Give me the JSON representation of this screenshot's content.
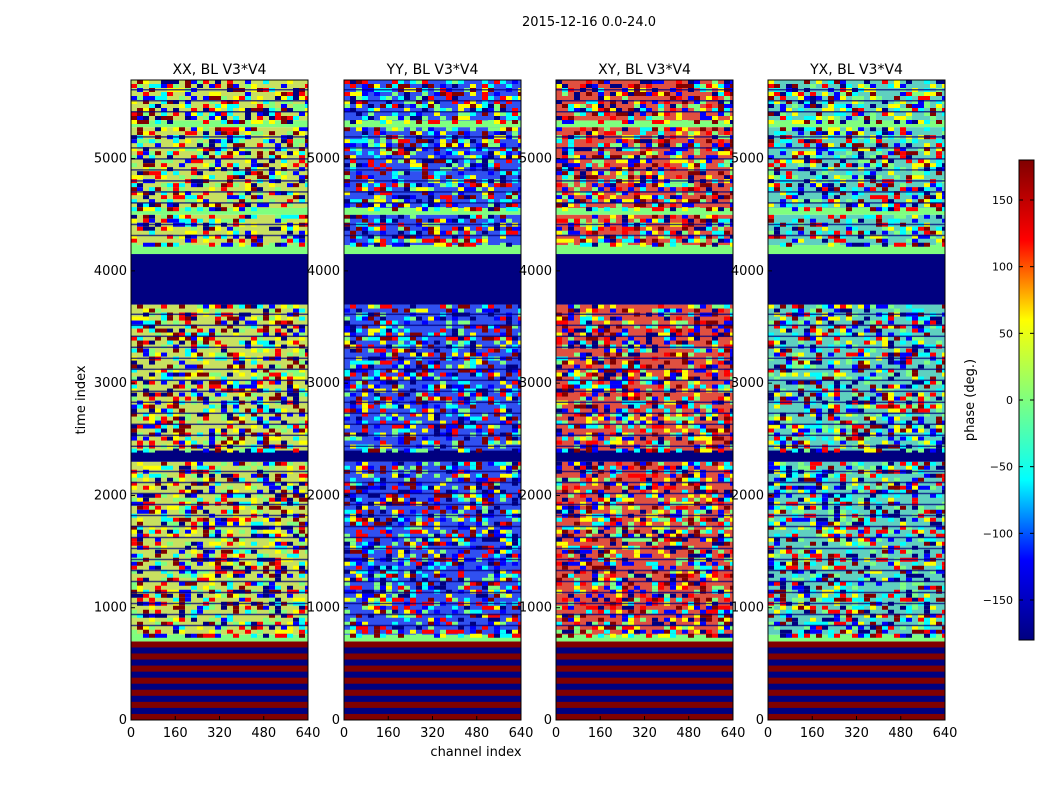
{
  "figure": {
    "suptitle": "2015-12-16 0.0-24.0",
    "xlabel": "channel index",
    "ylabel": "time index"
  },
  "colormap": {
    "name": "jet",
    "stops": [
      "#000080",
      "#0000ff",
      "#00ffff",
      "#7fff7f",
      "#ffff00",
      "#ff0000",
      "#800000"
    ]
  },
  "chart_data": [
    {
      "type": "heatmap",
      "title": "XX, BL V3*V4",
      "x": "channel index",
      "xlim": [
        0,
        640
      ],
      "xticks": [
        0,
        160,
        320,
        480,
        640
      ],
      "ylim": [
        0,
        5700
      ],
      "yticks": [
        0,
        1000,
        2000,
        3000,
        4000,
        5000
      ],
      "ylabel": "time index",
      "noise_color": "#c8e060",
      "bands": [
        {
          "y0": 0,
          "y1": 700,
          "kind": "stripes",
          "colors": [
            "#800000",
            "#000080"
          ]
        },
        {
          "y0": 700,
          "y1": 760,
          "kind": "solid",
          "color": "#7fff7f"
        },
        {
          "y0": 760,
          "y1": 2300,
          "kind": "noise"
        },
        {
          "y0": 2300,
          "y1": 2400,
          "kind": "solid",
          "color": "#000080"
        },
        {
          "y0": 2400,
          "y1": 3700,
          "kind": "noise"
        },
        {
          "y0": 3700,
          "y1": 4150,
          "kind": "solid",
          "color": "#000080"
        },
        {
          "y0": 4150,
          "y1": 4230,
          "kind": "solid",
          "color": "#7fff7f"
        },
        {
          "y0": 4230,
          "y1": 4500,
          "kind": "noise"
        },
        {
          "y0": 4500,
          "y1": 4560,
          "kind": "solid",
          "color": "#7fff7f"
        },
        {
          "y0": 4560,
          "y1": 5280,
          "kind": "noise"
        },
        {
          "y0": 5280,
          "y1": 5340,
          "kind": "solid",
          "color": "#7fff7f"
        },
        {
          "y0": 5340,
          "y1": 5700,
          "kind": "noise"
        }
      ]
    },
    {
      "type": "heatmap",
      "title": "YY, BL V3*V4",
      "x": "channel index",
      "xlim": [
        0,
        640
      ],
      "xticks": [
        0,
        160,
        320,
        480,
        640
      ],
      "ylim": [
        0,
        5700
      ],
      "yticks": [
        0,
        1000,
        2000,
        3000,
        4000,
        5000
      ],
      "noise_color": "#3050f0",
      "bands": [
        {
          "y0": 0,
          "y1": 700,
          "kind": "stripes",
          "colors": [
            "#800000",
            "#000080"
          ]
        },
        {
          "y0": 700,
          "y1": 760,
          "kind": "solid",
          "color": "#7fff7f"
        },
        {
          "y0": 760,
          "y1": 2300,
          "kind": "noise"
        },
        {
          "y0": 2300,
          "y1": 2400,
          "kind": "solid",
          "color": "#000080"
        },
        {
          "y0": 2400,
          "y1": 3700,
          "kind": "noise"
        },
        {
          "y0": 3700,
          "y1": 4150,
          "kind": "solid",
          "color": "#000080"
        },
        {
          "y0": 4150,
          "y1": 4230,
          "kind": "solid",
          "color": "#7fff7f"
        },
        {
          "y0": 4230,
          "y1": 4500,
          "kind": "noise"
        },
        {
          "y0": 4500,
          "y1": 4560,
          "kind": "solid",
          "color": "#7fff7f"
        },
        {
          "y0": 4560,
          "y1": 5280,
          "kind": "noise"
        },
        {
          "y0": 5280,
          "y1": 5340,
          "kind": "solid",
          "color": "#7fff7f"
        },
        {
          "y0": 5340,
          "y1": 5700,
          "kind": "noise"
        }
      ]
    },
    {
      "type": "heatmap",
      "title": "XY, BL V3*V4",
      "x": "channel index",
      "xlim": [
        0,
        640
      ],
      "xticks": [
        0,
        160,
        320,
        480,
        640
      ],
      "ylim": [
        0,
        5700
      ],
      "yticks": [
        0,
        1000,
        2000,
        3000,
        4000,
        5000
      ],
      "noise_color": "#e05040",
      "bands": [
        {
          "y0": 0,
          "y1": 700,
          "kind": "stripes",
          "colors": [
            "#800000",
            "#000080"
          ]
        },
        {
          "y0": 700,
          "y1": 760,
          "kind": "solid",
          "color": "#7fff7f"
        },
        {
          "y0": 760,
          "y1": 2300,
          "kind": "noise"
        },
        {
          "y0": 2300,
          "y1": 2400,
          "kind": "solid",
          "color": "#000080"
        },
        {
          "y0": 2400,
          "y1": 3700,
          "kind": "noise"
        },
        {
          "y0": 3700,
          "y1": 4150,
          "kind": "solid",
          "color": "#000080"
        },
        {
          "y0": 4150,
          "y1": 4230,
          "kind": "solid",
          "color": "#7fff7f"
        },
        {
          "y0": 4230,
          "y1": 4500,
          "kind": "noise"
        },
        {
          "y0": 4500,
          "y1": 4560,
          "kind": "solid",
          "color": "#7fff7f"
        },
        {
          "y0": 4560,
          "y1": 5280,
          "kind": "noise"
        },
        {
          "y0": 5280,
          "y1": 5340,
          "kind": "solid",
          "color": "#7fff7f"
        },
        {
          "y0": 5340,
          "y1": 5700,
          "kind": "noise"
        }
      ]
    },
    {
      "type": "heatmap",
      "title": "YX, BL V3*V4",
      "x": "channel index",
      "xlim": [
        0,
        640
      ],
      "xticks": [
        0,
        160,
        320,
        480,
        640
      ],
      "ylim": [
        0,
        5700
      ],
      "yticks": [
        0,
        1000,
        2000,
        3000,
        4000,
        5000
      ],
      "noise_color": "#5fd0c0",
      "bands": [
        {
          "y0": 0,
          "y1": 700,
          "kind": "stripes",
          "colors": [
            "#800000",
            "#000080"
          ]
        },
        {
          "y0": 700,
          "y1": 760,
          "kind": "solid",
          "color": "#7fff7f"
        },
        {
          "y0": 760,
          "y1": 2300,
          "kind": "noise"
        },
        {
          "y0": 2300,
          "y1": 2400,
          "kind": "solid",
          "color": "#000080"
        },
        {
          "y0": 2400,
          "y1": 3700,
          "kind": "noise"
        },
        {
          "y0": 3700,
          "y1": 4150,
          "kind": "solid",
          "color": "#000080"
        },
        {
          "y0": 4150,
          "y1": 4230,
          "kind": "solid",
          "color": "#7fff7f"
        },
        {
          "y0": 4230,
          "y1": 4500,
          "kind": "noise"
        },
        {
          "y0": 4500,
          "y1": 4560,
          "kind": "solid",
          "color": "#7fff7f"
        },
        {
          "y0": 4560,
          "y1": 5280,
          "kind": "noise"
        },
        {
          "y0": 5280,
          "y1": 5340,
          "kind": "solid",
          "color": "#7fff7f"
        },
        {
          "y0": 5340,
          "y1": 5700,
          "kind": "noise"
        }
      ]
    }
  ],
  "colorbar": {
    "label": "phase (deg.)",
    "range": [
      -180,
      180
    ],
    "ticks": [
      150,
      100,
      50,
      0,
      -50,
      -100,
      -150
    ],
    "tick_labels": [
      "150",
      "100",
      "50",
      "0",
      "−50",
      "−100",
      "−150"
    ]
  }
}
